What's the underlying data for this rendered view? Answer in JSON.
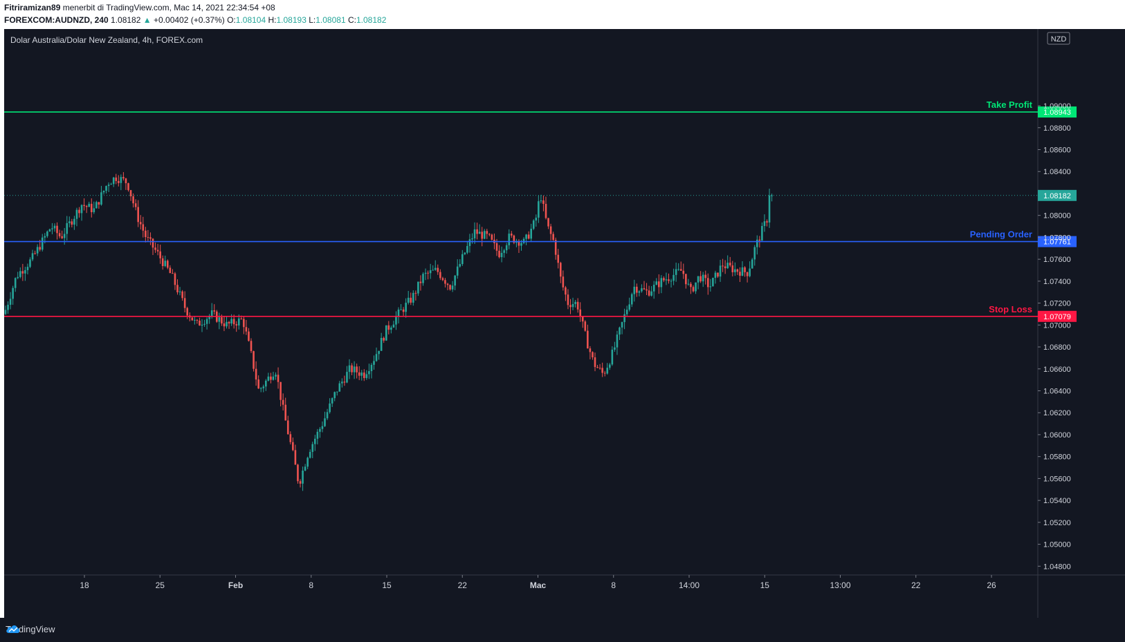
{
  "header": {
    "publisher": "Fitriramizan89",
    "published_text": "menerbit di TradingView.com, Mac 14, 2021 22:34:54 +08",
    "symbol": "FOREXCOM:AUDNZD, 240",
    "last": "1.08182",
    "change": "+0.00402 (+0.37%)",
    "ohlc": {
      "o_label": "O:",
      "o": "1.08104",
      "h_label": "H:",
      "h": "1.08193",
      "l_label": "L:",
      "l": "1.08081",
      "c_label": "C:",
      "c": "1.08182"
    }
  },
  "footer": {
    "brand": "TradingView"
  },
  "colors": {
    "background": "#131722",
    "up": "#26a69a",
    "down": "#ef5350",
    "take_profit": "#00e676",
    "pending": "#2962ff",
    "stop_loss": "#ff1744",
    "text": "#d1d4dc"
  },
  "chart_data": {
    "type": "candlestick",
    "title": "Dolar Australia/Dolar New Zealand, 4h, FOREX.com",
    "currency": "NZD",
    "y_axis": {
      "ticks": [
        1.09,
        1.088,
        1.086,
        1.084,
        1.08,
        1.078,
        1.076,
        1.074,
        1.072,
        1.07,
        1.068,
        1.066,
        1.064,
        1.062,
        1.06,
        1.058,
        1.056,
        1.054,
        1.052,
        1.05,
        1.048
      ],
      "ylim": [
        1.0472,
        1.097
      ]
    },
    "x_axis": {
      "tick_labels": [
        "18",
        "25",
        "Feb",
        "8",
        "15",
        "22",
        "Mac",
        "8",
        "14:00",
        "15",
        "13:00",
        "22",
        "26"
      ],
      "bold_labels": [
        "Feb",
        "Mac"
      ]
    },
    "horizontal_lines": [
      {
        "label": "Take Profit",
        "value": 1.08943,
        "value_text": "1.08943",
        "color": "#00e676"
      },
      {
        "label": "Pending Order",
        "value": 1.07761,
        "value_text": "1.07761",
        "color": "#2962ff"
      },
      {
        "label": "Stop Loss",
        "value": 1.07079,
        "value_text": "1.07079",
        "color": "#ff1744"
      }
    ],
    "last_price": {
      "value": 1.08182,
      "value_text": "1.08182"
    },
    "price_path": [
      [
        0,
        1.071
      ],
      [
        18,
        1.0745
      ],
      [
        40,
        1.076
      ],
      [
        68,
        1.079
      ],
      [
        82,
        1.078
      ],
      [
        112,
        1.081
      ],
      [
        130,
        1.0805
      ],
      [
        150,
        1.083
      ],
      [
        162,
        1.0835
      ],
      [
        178,
        1.083
      ],
      [
        192,
        1.08
      ],
      [
        205,
        1.078
      ],
      [
        222,
        1.0765
      ],
      [
        242,
        1.0745
      ],
      [
        262,
        1.0715
      ],
      [
        278,
        1.07
      ],
      [
        300,
        1.071
      ],
      [
        322,
        1.07
      ],
      [
        345,
        1.0705
      ],
      [
        358,
        1.067
      ],
      [
        368,
        1.064
      ],
      [
        392,
        1.066
      ],
      [
        404,
        1.062
      ],
      [
        418,
        1.058
      ],
      [
        426,
        1.0555
      ],
      [
        440,
        1.0585
      ],
      [
        460,
        1.061
      ],
      [
        480,
        1.064
      ],
      [
        500,
        1.066
      ],
      [
        520,
        1.0655
      ],
      [
        535,
        1.067
      ],
      [
        552,
        1.0695
      ],
      [
        570,
        1.071
      ],
      [
        590,
        1.0725
      ],
      [
        606,
        1.0745
      ],
      [
        625,
        1.075
      ],
      [
        645,
        1.0735
      ],
      [
        665,
        1.0765
      ],
      [
        680,
        1.0785
      ],
      [
        700,
        1.078
      ],
      [
        715,
        1.0765
      ],
      [
        730,
        1.078
      ],
      [
        752,
        1.0775
      ],
      [
        768,
        1.0795
      ],
      [
        775,
        1.082
      ],
      [
        785,
        1.079
      ],
      [
        795,
        1.0775
      ],
      [
        805,
        1.074
      ],
      [
        815,
        1.072
      ],
      [
        828,
        1.072
      ],
      [
        840,
        1.069
      ],
      [
        852,
        1.0665
      ],
      [
        866,
        1.0655
      ],
      [
        880,
        1.0675
      ],
      [
        895,
        1.0705
      ],
      [
        910,
        1.0735
      ],
      [
        930,
        1.073
      ],
      [
        950,
        1.074
      ],
      [
        965,
        1.0745
      ],
      [
        980,
        1.075
      ],
      [
        992,
        1.073
      ],
      [
        1005,
        1.0745
      ],
      [
        1020,
        1.0735
      ],
      [
        1038,
        1.0755
      ],
      [
        1058,
        1.075
      ],
      [
        1075,
        1.0748
      ],
      [
        1085,
        1.077
      ],
      [
        1098,
        1.079
      ],
      [
        1108,
        1.0805
      ],
      [
        1112,
        1.0818
      ]
    ]
  }
}
